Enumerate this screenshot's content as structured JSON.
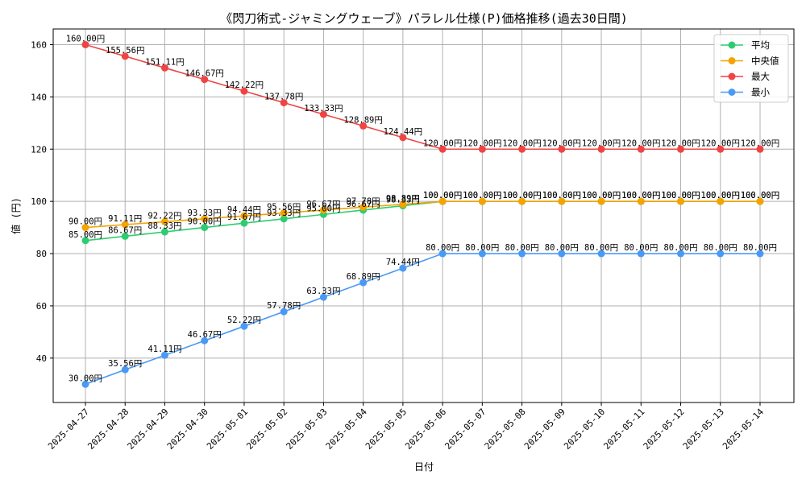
{
  "chart_data": {
    "type": "line",
    "title": "《閃刀術式-ジャミングウェーブ》パラレル仕様(P)価格推移(過去30日間)",
    "xlabel": "日付",
    "ylabel": "値 (円)",
    "categories": [
      "2025-04-27",
      "2025-04-28",
      "2025-04-29",
      "2025-04-30",
      "2025-05-01",
      "2025-05-02",
      "2025-05-03",
      "2025-05-04",
      "2025-05-05",
      "2025-05-06",
      "2025-05-07",
      "2025-05-08",
      "2025-05-09",
      "2025-05-10",
      "2025-05-11",
      "2025-05-12",
      "2025-05-13",
      "2025-05-14"
    ],
    "ylim": [
      23,
      166
    ],
    "yticks": [
      40,
      60,
      80,
      100,
      120,
      140,
      160
    ],
    "grid": true,
    "legend_position": "top-right",
    "value_suffix": "円",
    "series": [
      {
        "name": "平均",
        "color": "#2ecc71",
        "values": [
          85.0,
          86.67,
          88.33,
          90.0,
          91.67,
          93.33,
          95.0,
          96.67,
          98.33,
          100.0,
          100.0,
          100.0,
          100.0,
          100.0,
          100.0,
          100.0,
          100.0,
          100.0
        ]
      },
      {
        "name": "中央値",
        "color": "#f5a300",
        "values": [
          90.0,
          91.11,
          92.22,
          93.33,
          94.44,
          95.56,
          96.67,
          97.78,
          98.89,
          100.0,
          100.0,
          100.0,
          100.0,
          100.0,
          100.0,
          100.0,
          100.0,
          100.0
        ]
      },
      {
        "name": "最大",
        "color": "#f04444",
        "values": [
          160.0,
          155.56,
          151.11,
          146.67,
          142.22,
          137.78,
          133.33,
          128.89,
          124.44,
          120.0,
          120.0,
          120.0,
          120.0,
          120.0,
          120.0,
          120.0,
          120.0,
          120.0
        ]
      },
      {
        "name": "最小",
        "color": "#4a9af5",
        "values": [
          30.0,
          35.56,
          41.11,
          46.67,
          52.22,
          57.78,
          63.33,
          68.89,
          74.44,
          80.0,
          80.0,
          80.0,
          80.0,
          80.0,
          80.0,
          80.0,
          80.0,
          80.0
        ]
      }
    ]
  }
}
